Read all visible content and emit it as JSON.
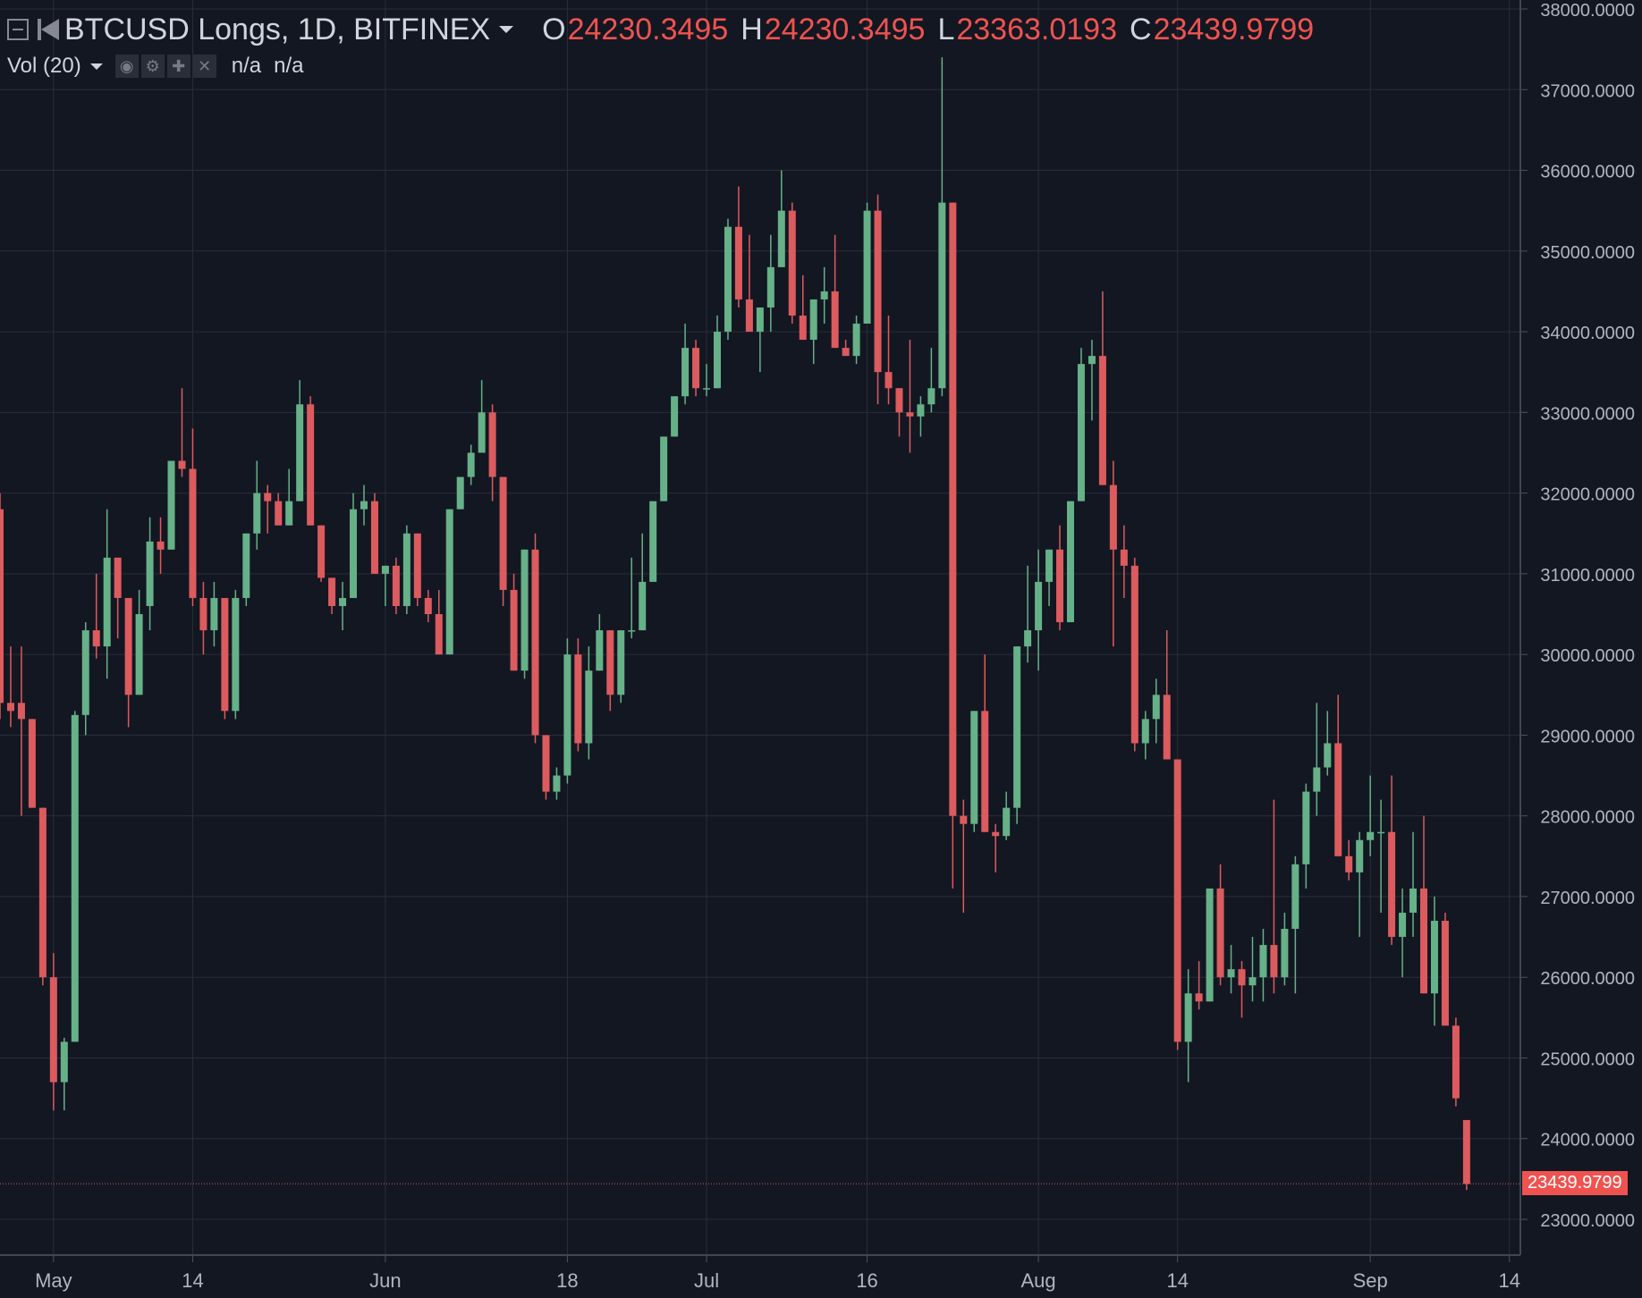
{
  "legend": {
    "symbol": "BTCUSD Longs, 1D, BITFINEX",
    "ohlc": [
      {
        "key": "O",
        "value": "24230.3495"
      },
      {
        "key": "H",
        "value": "24230.3495"
      },
      {
        "key": "L",
        "value": "23363.0193"
      },
      {
        "key": "C",
        "value": "23439.9799"
      }
    ]
  },
  "volume": {
    "label": "Vol (20)",
    "values": [
      "n/a",
      "n/a"
    ],
    "icons": [
      "eye-icon",
      "gear-icon",
      "plus-icon",
      "close-icon"
    ]
  },
  "last_price_label": "23439.9799",
  "colors": {
    "background": "#131722",
    "grid": "#2a2e39",
    "up": "#66b188",
    "down": "#dc5b5e",
    "text": "#b2b5be",
    "accent_red": "#ef5350"
  },
  "chart_data": {
    "type": "candlestick",
    "title": "BTCUSD Longs, 1D, BITFINEX",
    "x_tick_labels": [
      "May",
      "14",
      "Jun",
      "18",
      "Jul",
      "16",
      "Aug",
      "14",
      "Sep",
      "14"
    ],
    "y_tick_labels": [
      "23000.0000",
      "24000.0000",
      "25000.0000",
      "26000.0000",
      "27000.0000",
      "28000.0000",
      "29000.0000",
      "30000.0000",
      "31000.0000",
      "32000.0000",
      "33000.0000",
      "34000.0000",
      "35000.0000",
      "36000.0000",
      "37000.0000",
      "38000.0000"
    ],
    "ylim": [
      22550,
      38120
    ],
    "grid": true,
    "last_value": 23439.9799,
    "candles": [
      {
        "date": "2018-04-26",
        "o": 31800,
        "h": 32000,
        "l": 29200,
        "c": 29400
      },
      {
        "date": "2018-04-27",
        "o": 29400,
        "h": 30100,
        "l": 29100,
        "c": 29300
      },
      {
        "date": "2018-04-28",
        "o": 29400,
        "h": 30100,
        "l": 28000,
        "c": 29200
      },
      {
        "date": "2018-04-29",
        "o": 29200,
        "h": 29200,
        "l": 28100,
        "c": 28100
      },
      {
        "date": "2018-04-30",
        "o": 28100,
        "h": 28100,
        "l": 25900,
        "c": 26000
      },
      {
        "date": "2018-05-01",
        "o": 26000,
        "h": 26300,
        "l": 24350,
        "c": 24700
      },
      {
        "date": "2018-05-02",
        "o": 24700,
        "h": 25250,
        "l": 24350,
        "c": 25200
      },
      {
        "date": "2018-05-03",
        "o": 25200,
        "h": 29300,
        "l": 25200,
        "c": 29250
      },
      {
        "date": "2018-05-04",
        "o": 29250,
        "h": 30400,
        "l": 29000,
        "c": 30300
      },
      {
        "date": "2018-05-05",
        "o": 30300,
        "h": 31000,
        "l": 29950,
        "c": 30100
      },
      {
        "date": "2018-05-06",
        "o": 30100,
        "h": 31800,
        "l": 29700,
        "c": 31200
      },
      {
        "date": "2018-05-07",
        "o": 31200,
        "h": 31200,
        "l": 30200,
        "c": 30700
      },
      {
        "date": "2018-05-08",
        "o": 30700,
        "h": 30700,
        "l": 29100,
        "c": 29500
      },
      {
        "date": "2018-05-09",
        "o": 29500,
        "h": 30800,
        "l": 29500,
        "c": 30500
      },
      {
        "date": "2018-05-10",
        "o": 30600,
        "h": 31700,
        "l": 30300,
        "c": 31400
      },
      {
        "date": "2018-05-11",
        "o": 31400,
        "h": 31700,
        "l": 31000,
        "c": 31300
      },
      {
        "date": "2018-05-12",
        "o": 31300,
        "h": 32400,
        "l": 31300,
        "c": 32400
      },
      {
        "date": "2018-05-13",
        "o": 32400,
        "h": 33300,
        "l": 32200,
        "c": 32300
      },
      {
        "date": "2018-05-14",
        "o": 32300,
        "h": 32800,
        "l": 30600,
        "c": 30700
      },
      {
        "date": "2018-05-15",
        "o": 30700,
        "h": 30900,
        "l": 30000,
        "c": 30300
      },
      {
        "date": "2018-05-16",
        "o": 30300,
        "h": 30900,
        "l": 30100,
        "c": 30700
      },
      {
        "date": "2018-05-17",
        "o": 30700,
        "h": 30700,
        "l": 29200,
        "c": 29300
      },
      {
        "date": "2018-05-18",
        "o": 29300,
        "h": 30800,
        "l": 29200,
        "c": 30700
      },
      {
        "date": "2018-05-19",
        "o": 30700,
        "h": 31500,
        "l": 30600,
        "c": 31500
      },
      {
        "date": "2018-05-20",
        "o": 31500,
        "h": 32400,
        "l": 31300,
        "c": 32000
      },
      {
        "date": "2018-05-21",
        "o": 32000,
        "h": 32100,
        "l": 31500,
        "c": 31900
      },
      {
        "date": "2018-05-22",
        "o": 31900,
        "h": 32000,
        "l": 31600,
        "c": 31600
      },
      {
        "date": "2018-05-23",
        "o": 31600,
        "h": 32300,
        "l": 31600,
        "c": 31900
      },
      {
        "date": "2018-05-24",
        "o": 31900,
        "h": 33400,
        "l": 31900,
        "c": 33100
      },
      {
        "date": "2018-05-25",
        "o": 33100,
        "h": 33200,
        "l": 31600,
        "c": 31600
      },
      {
        "date": "2018-05-26",
        "o": 31600,
        "h": 31600,
        "l": 30900,
        "c": 30950
      },
      {
        "date": "2018-05-27",
        "o": 30950,
        "h": 30950,
        "l": 30500,
        "c": 30600
      },
      {
        "date": "2018-05-28",
        "o": 30600,
        "h": 30900,
        "l": 30300,
        "c": 30700
      },
      {
        "date": "2018-05-29",
        "o": 30700,
        "h": 32000,
        "l": 30700,
        "c": 31800
      },
      {
        "date": "2018-05-30",
        "o": 31800,
        "h": 32100,
        "l": 31600,
        "c": 31900
      },
      {
        "date": "2018-05-31",
        "o": 31900,
        "h": 32000,
        "l": 31000,
        "c": 31000
      },
      {
        "date": "2018-06-01",
        "o": 31000,
        "h": 31100,
        "l": 30600,
        "c": 31100
      },
      {
        "date": "2018-06-02",
        "o": 31100,
        "h": 31200,
        "l": 30500,
        "c": 30600
      },
      {
        "date": "2018-06-03",
        "o": 30600,
        "h": 31600,
        "l": 30500,
        "c": 31500
      },
      {
        "date": "2018-06-04",
        "o": 31500,
        "h": 31500,
        "l": 30600,
        "c": 30700
      },
      {
        "date": "2018-06-05",
        "o": 30700,
        "h": 30800,
        "l": 30400,
        "c": 30500
      },
      {
        "date": "2018-06-06",
        "o": 30500,
        "h": 30800,
        "l": 30000,
        "c": 30000
      },
      {
        "date": "2018-06-07",
        "o": 30000,
        "h": 31800,
        "l": 30000,
        "c": 31800
      },
      {
        "date": "2018-06-08",
        "o": 31800,
        "h": 32200,
        "l": 31800,
        "c": 32200
      },
      {
        "date": "2018-06-09",
        "o": 32200,
        "h": 32600,
        "l": 32100,
        "c": 32500
      },
      {
        "date": "2018-06-10",
        "o": 32500,
        "h": 33400,
        "l": 32500,
        "c": 33000
      },
      {
        "date": "2018-06-11",
        "o": 33000,
        "h": 33100,
        "l": 31900,
        "c": 32200
      },
      {
        "date": "2018-06-12",
        "o": 32200,
        "h": 32200,
        "l": 30600,
        "c": 30800
      },
      {
        "date": "2018-06-13",
        "o": 30800,
        "h": 31000,
        "l": 29800,
        "c": 29800
      },
      {
        "date": "2018-06-14",
        "o": 29800,
        "h": 31300,
        "l": 29700,
        "c": 31300
      },
      {
        "date": "2018-06-15",
        "o": 31300,
        "h": 31500,
        "l": 28900,
        "c": 29000
      },
      {
        "date": "2018-06-16",
        "o": 29000,
        "h": 29000,
        "l": 28200,
        "c": 28300
      },
      {
        "date": "2018-06-17",
        "o": 28300,
        "h": 28600,
        "l": 28200,
        "c": 28500
      },
      {
        "date": "2018-06-18",
        "o": 28500,
        "h": 30200,
        "l": 28400,
        "c": 30000
      },
      {
        "date": "2018-06-19",
        "o": 30000,
        "h": 30200,
        "l": 28800,
        "c": 28900
      },
      {
        "date": "2018-06-20",
        "o": 28900,
        "h": 30100,
        "l": 28700,
        "c": 29800
      },
      {
        "date": "2018-06-21",
        "o": 29800,
        "h": 30500,
        "l": 29800,
        "c": 30300
      },
      {
        "date": "2018-06-22",
        "o": 30300,
        "h": 30300,
        "l": 29300,
        "c": 29500
      },
      {
        "date": "2018-06-23",
        "o": 29500,
        "h": 30300,
        "l": 29400,
        "c": 30300
      },
      {
        "date": "2018-06-24",
        "o": 30300,
        "h": 31200,
        "l": 30200,
        "c": 30300
      },
      {
        "date": "2018-06-25",
        "o": 30300,
        "h": 31500,
        "l": 30300,
        "c": 30900
      },
      {
        "date": "2018-06-26",
        "o": 30900,
        "h": 31900,
        "l": 30900,
        "c": 31900
      },
      {
        "date": "2018-06-27",
        "o": 31900,
        "h": 32700,
        "l": 31900,
        "c": 32700
      },
      {
        "date": "2018-06-28",
        "o": 32700,
        "h": 33200,
        "l": 32700,
        "c": 33200
      },
      {
        "date": "2018-06-29",
        "o": 33200,
        "h": 34100,
        "l": 33100,
        "c": 33800
      },
      {
        "date": "2018-06-30",
        "o": 33800,
        "h": 33900,
        "l": 33200,
        "c": 33300
      },
      {
        "date": "2018-07-01",
        "o": 33300,
        "h": 33600,
        "l": 33200,
        "c": 33300
      },
      {
        "date": "2018-07-02",
        "o": 33300,
        "h": 34200,
        "l": 33300,
        "c": 34000
      },
      {
        "date": "2018-07-03",
        "o": 34000,
        "h": 35400,
        "l": 33900,
        "c": 35300
      },
      {
        "date": "2018-07-04",
        "o": 35300,
        "h": 35800,
        "l": 34300,
        "c": 34400
      },
      {
        "date": "2018-07-05",
        "o": 34400,
        "h": 35200,
        "l": 34000,
        "c": 34000
      },
      {
        "date": "2018-07-06",
        "o": 34000,
        "h": 34200,
        "l": 33500,
        "c": 34300
      },
      {
        "date": "2018-07-07",
        "o": 34300,
        "h": 35200,
        "l": 34000,
        "c": 34800
      },
      {
        "date": "2018-07-08",
        "o": 34800,
        "h": 36000,
        "l": 34800,
        "c": 35500
      },
      {
        "date": "2018-07-09",
        "o": 35500,
        "h": 35600,
        "l": 34100,
        "c": 34200
      },
      {
        "date": "2018-07-10",
        "o": 34200,
        "h": 34700,
        "l": 33900,
        "c": 33900
      },
      {
        "date": "2018-07-11",
        "o": 33900,
        "h": 34400,
        "l": 33600,
        "c": 34400
      },
      {
        "date": "2018-07-12",
        "o": 34400,
        "h": 34800,
        "l": 34100,
        "c": 34500
      },
      {
        "date": "2018-07-13",
        "o": 34500,
        "h": 35200,
        "l": 33800,
        "c": 33800
      },
      {
        "date": "2018-07-14",
        "o": 33800,
        "h": 33900,
        "l": 33700,
        "c": 33700
      },
      {
        "date": "2018-07-15",
        "o": 33700,
        "h": 34200,
        "l": 33600,
        "c": 34100
      },
      {
        "date": "2018-07-16",
        "o": 34100,
        "h": 35600,
        "l": 34100,
        "c": 35500
      },
      {
        "date": "2018-07-17",
        "o": 35500,
        "h": 35700,
        "l": 33100,
        "c": 33500
      },
      {
        "date": "2018-07-18",
        "o": 33500,
        "h": 34200,
        "l": 33100,
        "c": 33300
      },
      {
        "date": "2018-07-19",
        "o": 33300,
        "h": 33300,
        "l": 32700,
        "c": 33000
      },
      {
        "date": "2018-07-20",
        "o": 33000,
        "h": 33900,
        "l": 32500,
        "c": 32950
      },
      {
        "date": "2018-07-21",
        "o": 32950,
        "h": 33200,
        "l": 32700,
        "c": 33100
      },
      {
        "date": "2018-07-22",
        "o": 33100,
        "h": 33800,
        "l": 33000,
        "c": 33300
      },
      {
        "date": "2018-07-23",
        "o": 33300,
        "h": 37400,
        "l": 33200,
        "c": 35600
      },
      {
        "date": "2018-07-24",
        "o": 35600,
        "h": 35600,
        "l": 27100,
        "c": 28000
      },
      {
        "date": "2018-07-25",
        "o": 28000,
        "h": 28200,
        "l": 26800,
        "c": 27900
      },
      {
        "date": "2018-07-26",
        "o": 27900,
        "h": 29300,
        "l": 27800,
        "c": 29300
      },
      {
        "date": "2018-07-27",
        "o": 29300,
        "h": 30000,
        "l": 27800,
        "c": 27800
      },
      {
        "date": "2018-07-28",
        "o": 27800,
        "h": 27900,
        "l": 27300,
        "c": 27750
      },
      {
        "date": "2018-07-29",
        "o": 27750,
        "h": 28300,
        "l": 27700,
        "c": 28100
      },
      {
        "date": "2018-07-30",
        "o": 28100,
        "h": 30100,
        "l": 27900,
        "c": 30100
      },
      {
        "date": "2018-07-31",
        "o": 30100,
        "h": 31100,
        "l": 29900,
        "c": 30300
      },
      {
        "date": "2018-08-01",
        "o": 30300,
        "h": 31300,
        "l": 29800,
        "c": 30900
      },
      {
        "date": "2018-08-02",
        "o": 30900,
        "h": 31300,
        "l": 30600,
        "c": 31300
      },
      {
        "date": "2018-08-03",
        "o": 31300,
        "h": 31600,
        "l": 30300,
        "c": 30400
      },
      {
        "date": "2018-08-04",
        "o": 30400,
        "h": 31900,
        "l": 30400,
        "c": 31900
      },
      {
        "date": "2018-08-05",
        "o": 31900,
        "h": 33800,
        "l": 31900,
        "c": 33600
      },
      {
        "date": "2018-08-06",
        "o": 33600,
        "h": 33900,
        "l": 32900,
        "c": 33700
      },
      {
        "date": "2018-08-07",
        "o": 33700,
        "h": 34500,
        "l": 32100,
        "c": 32100
      },
      {
        "date": "2018-08-08",
        "o": 32100,
        "h": 32400,
        "l": 30100,
        "c": 31300
      },
      {
        "date": "2018-08-09",
        "o": 31300,
        "h": 31600,
        "l": 30700,
        "c": 31100
      },
      {
        "date": "2018-08-10",
        "o": 31100,
        "h": 31200,
        "l": 28800,
        "c": 28900
      },
      {
        "date": "2018-08-11",
        "o": 28900,
        "h": 29300,
        "l": 28700,
        "c": 29200
      },
      {
        "date": "2018-08-12",
        "o": 29200,
        "h": 29700,
        "l": 28900,
        "c": 29500
      },
      {
        "date": "2018-08-13",
        "o": 29500,
        "h": 30300,
        "l": 28700,
        "c": 28700
      },
      {
        "date": "2018-08-14",
        "o": 28700,
        "h": 28700,
        "l": 25100,
        "c": 25200
      },
      {
        "date": "2018-08-15",
        "o": 25200,
        "h": 26100,
        "l": 24700,
        "c": 25800
      },
      {
        "date": "2018-08-16",
        "o": 25800,
        "h": 26200,
        "l": 25600,
        "c": 25700
      },
      {
        "date": "2018-08-17",
        "o": 25700,
        "h": 27100,
        "l": 25700,
        "c": 27100
      },
      {
        "date": "2018-08-18",
        "o": 27100,
        "h": 27400,
        "l": 25900,
        "c": 26000
      },
      {
        "date": "2018-08-19",
        "o": 26000,
        "h": 26400,
        "l": 25800,
        "c": 26100
      },
      {
        "date": "2018-08-20",
        "o": 26100,
        "h": 26200,
        "l": 25500,
        "c": 25900
      },
      {
        "date": "2018-08-21",
        "o": 25900,
        "h": 26500,
        "l": 25700,
        "c": 26000
      },
      {
        "date": "2018-08-22",
        "o": 26000,
        "h": 26600,
        "l": 25700,
        "c": 26400
      },
      {
        "date": "2018-08-23",
        "o": 26400,
        "h": 28200,
        "l": 25800,
        "c": 26000
      },
      {
        "date": "2018-08-24",
        "o": 26000,
        "h": 26800,
        "l": 25900,
        "c": 26600
      },
      {
        "date": "2018-08-25",
        "o": 26600,
        "h": 27500,
        "l": 25800,
        "c": 27400
      },
      {
        "date": "2018-08-26",
        "o": 27400,
        "h": 28400,
        "l": 27100,
        "c": 28300
      },
      {
        "date": "2018-08-27",
        "o": 28300,
        "h": 29400,
        "l": 28000,
        "c": 28600
      },
      {
        "date": "2018-08-28",
        "o": 28600,
        "h": 29300,
        "l": 28500,
        "c": 28900
      },
      {
        "date": "2018-08-29",
        "o": 28900,
        "h": 29500,
        "l": 27600,
        "c": 27500
      },
      {
        "date": "2018-08-30",
        "o": 27500,
        "h": 27700,
        "l": 27200,
        "c": 27300
      },
      {
        "date": "2018-08-31",
        "o": 27300,
        "h": 27800,
        "l": 26500,
        "c": 27700
      },
      {
        "date": "2018-09-01",
        "o": 27700,
        "h": 28500,
        "l": 27500,
        "c": 27800
      },
      {
        "date": "2018-09-02",
        "o": 27800,
        "h": 28200,
        "l": 26800,
        "c": 27800
      },
      {
        "date": "2018-09-03",
        "o": 27800,
        "h": 28500,
        "l": 26400,
        "c": 26500
      },
      {
        "date": "2018-09-04",
        "o": 26500,
        "h": 27100,
        "l": 26000,
        "c": 26800
      },
      {
        "date": "2018-09-05",
        "o": 26800,
        "h": 27800,
        "l": 26500,
        "c": 27100
      },
      {
        "date": "2018-09-06",
        "o": 27100,
        "h": 28000,
        "l": 25800,
        "c": 25800
      },
      {
        "date": "2018-09-07",
        "o": 25800,
        "h": 27000,
        "l": 25400,
        "c": 26700
      },
      {
        "date": "2018-09-08",
        "o": 26700,
        "h": 26800,
        "l": 25400,
        "c": 25400
      },
      {
        "date": "2018-09-09",
        "o": 25400,
        "h": 25500,
        "l": 24400,
        "c": 24500
      },
      {
        "date": "2018-09-10",
        "o": 24230.3495,
        "h": 24230.3495,
        "l": 23363.0193,
        "c": 23439.9799
      }
    ]
  }
}
